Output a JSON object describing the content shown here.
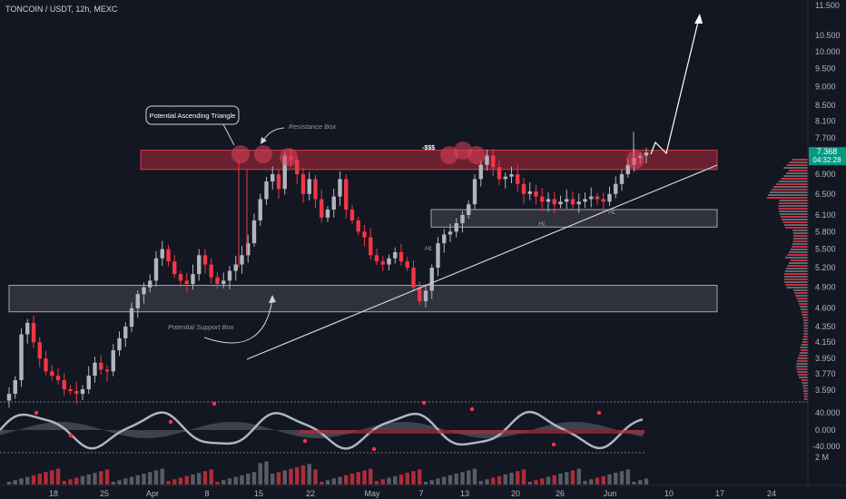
{
  "header": {
    "symbol_title": "TONCOIN / USDT, 12h, MEXC"
  },
  "price_axis": {
    "ticks": [
      "11.500",
      "10.500",
      "10.000",
      "9.500",
      "9.000",
      "8.500",
      "8.100",
      "7.700",
      "7.300",
      "6.900",
      "6.500",
      "6.100",
      "5.800",
      "5.500",
      "5.200",
      "4.900",
      "4.600",
      "4.350",
      "4.150",
      "3.950",
      "3.770",
      "3.590"
    ],
    "current_price": "7.368",
    "countdown": "04:32:28",
    "current_color": "#089981"
  },
  "osc_axis": {
    "ticks": [
      "40.000",
      "0.000",
      "-40.000"
    ]
  },
  "vol_axis": {
    "ticks": [
      "2 M"
    ]
  },
  "time_axis": {
    "ticks": [
      "18",
      "25",
      "Apr",
      "8",
      "15",
      "22",
      "May",
      "7",
      "13",
      "20",
      "26",
      "Jun",
      "10",
      "17",
      "24"
    ]
  },
  "annotations": {
    "triangle_callout": "Potential Ascending Triangle",
    "resistance_box": "Resistance Box",
    "support_box": "Potential Support Box",
    "liquidity_label": "-$$$",
    "hl_labels": [
      "HL",
      "HL",
      "HL"
    ]
  },
  "colors": {
    "up": "#b2b5be",
    "down": "#f23645",
    "background": "#131722",
    "resistance": "#b2283b",
    "support": "#9598a1"
  },
  "chart_data": {
    "type": "candlestick",
    "title": "TONCOIN / USDT, 12h, MEXC",
    "ylim": [
      3.45,
      11.9
    ],
    "y_scale": "log",
    "grid": false,
    "resistance_box": [
      7.0,
      7.42
    ],
    "support_box_lower": [
      4.55,
      4.93
    ],
    "support_box_mid": [
      5.88,
      6.2
    ],
    "current_price": 7.368,
    "closes": [
      3.55,
      3.7,
      4.25,
      4.4,
      4.15,
      3.95,
      3.8,
      3.75,
      3.7,
      3.6,
      3.58,
      3.55,
      3.6,
      3.75,
      3.9,
      3.82,
      3.8,
      4.05,
      4.2,
      4.35,
      4.6,
      4.8,
      4.9,
      5.0,
      5.35,
      5.5,
      5.3,
      5.1,
      5.0,
      4.95,
      5.1,
      5.4,
      5.25,
      5.05,
      4.95,
      5.0,
      5.15,
      5.25,
      5.4,
      5.6,
      6.0,
      6.4,
      6.75,
      6.9,
      6.6,
      7.3,
      7.2,
      6.9,
      6.5,
      6.8,
      6.4,
      6.05,
      6.2,
      6.45,
      6.8,
      6.2,
      6.0,
      5.8,
      5.7,
      5.4,
      5.3,
      5.25,
      5.35,
      5.45,
      5.3,
      5.2,
      4.9,
      4.7,
      4.85,
      5.2,
      5.6,
      5.75,
      5.8,
      5.95,
      6.1,
      6.3,
      6.8,
      7.1,
      7.3,
      7.05,
      6.8,
      6.85,
      6.9,
      6.7,
      6.5,
      6.55,
      6.45,
      6.35,
      6.4,
      6.3,
      6.35,
      6.4,
      6.3,
      6.35,
      6.4,
      6.45,
      6.4,
      6.35,
      6.5,
      6.7,
      6.9,
      7.1,
      7.25,
      7.3,
      7.368
    ],
    "forecast_path_to": 11.35,
    "oscillator": {
      "ylim": [
        -60,
        65
      ],
      "ticks": [
        40,
        0,
        -40
      ]
    }
  }
}
